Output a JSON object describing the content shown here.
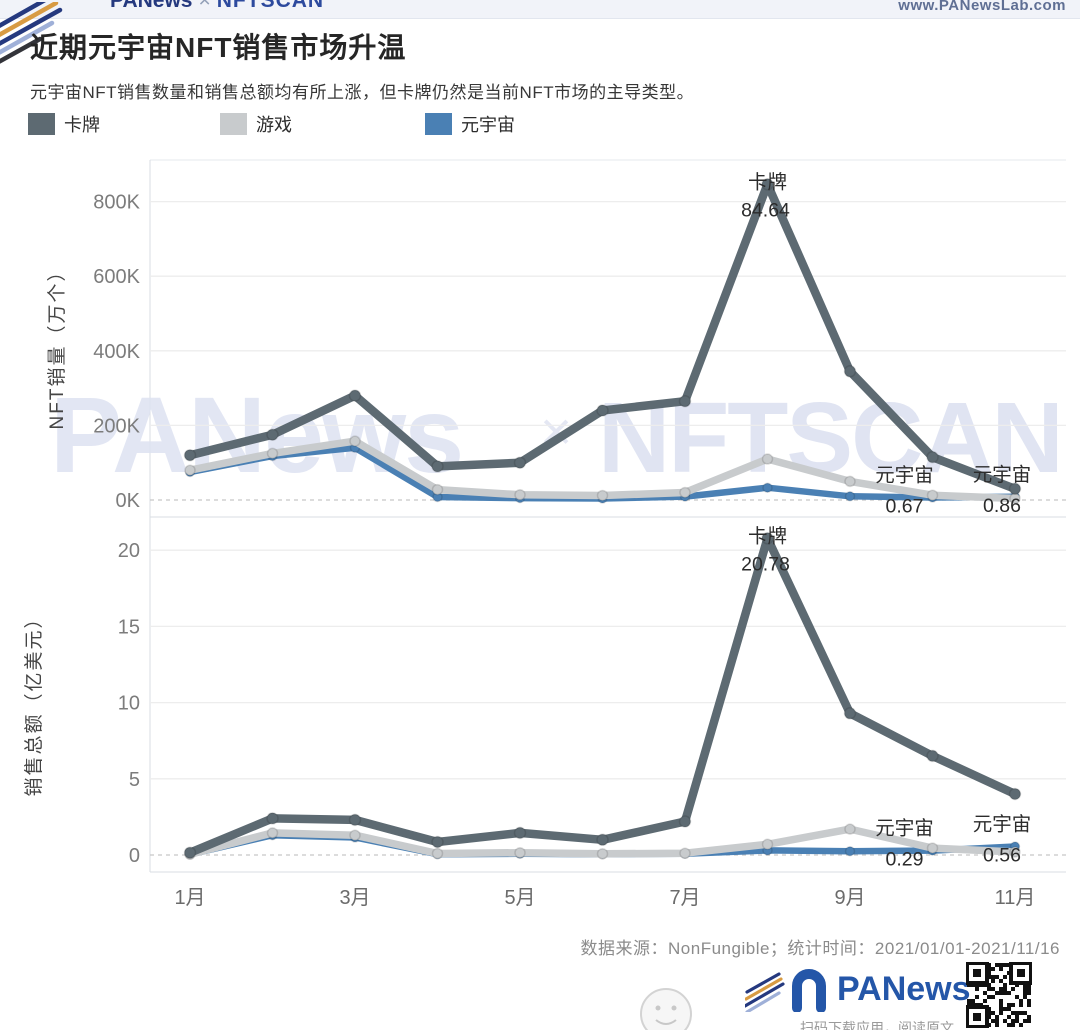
{
  "header": {
    "brand_left": "PANews",
    "brand_sep": "×",
    "brand_right": "NFTSCAN",
    "url": "www.PANewsLab.com"
  },
  "title": "近期元宇宙NFT销售市场升温",
  "subtitle": "元宇宙NFT销售数量和销售总额均有所上涨，但卡牌仍然是当前NFT市场的主导类型。",
  "legend": [
    {
      "label": "卡牌",
      "color": "#5d6a72"
    },
    {
      "label": "游戏",
      "color": "#c8cbcd"
    },
    {
      "label": "元宇宙",
      "color": "#4a80b4"
    }
  ],
  "colors": {
    "card": "#5d6a72",
    "game": "#c8cbcd",
    "metaverse": "#4a80b4"
  },
  "watermark": {
    "left": "PANews",
    "sep": "×",
    "right": "NFTSCAN"
  },
  "chart_data": [
    {
      "type": "line",
      "ylabel": "NFT销量（万个）",
      "x": [
        "1月",
        "2月",
        "3月",
        "4月",
        "5月",
        "6月",
        "7月",
        "8月",
        "9月",
        "10月",
        "11月"
      ],
      "x_tick_labels": [
        "1月",
        "3月",
        "5月",
        "7月",
        "9月",
        "11月"
      ],
      "yticks": [
        "0K",
        "200K",
        "400K",
        "600K",
        "800K"
      ],
      "ylim": [
        0,
        900
      ],
      "grid": true,
      "series": [
        {
          "name": "元宇宙",
          "color": "#4a80b4",
          "values": [
            75,
            118,
            140,
            8,
            5,
            4,
            9,
            33,
            10,
            6.7,
            8.6
          ]
        },
        {
          "name": "游戏",
          "color": "#c8cbcd",
          "values": [
            80,
            125,
            158,
            28,
            14,
            12,
            20,
            110,
            50,
            13,
            4
          ]
        },
        {
          "name": "卡牌",
          "color": "#5d6a72",
          "values": [
            120,
            175,
            280,
            90,
            100,
            240,
            265,
            846.4,
            345,
            115,
            30
          ]
        }
      ],
      "annotations": [
        {
          "kind": "peak",
          "label": "卡牌",
          "value": "84.64",
          "month": "8月",
          "series": "卡牌"
        },
        {
          "kind": "side",
          "label": "元宇宙",
          "value": "0.67",
          "month": "10月",
          "series": "元宇宙"
        },
        {
          "kind": "side",
          "label": "元宇宙",
          "value": "0.86",
          "month": "11月",
          "series": "元宇宙"
        }
      ]
    },
    {
      "type": "line",
      "ylabel": "销售总额（亿美元）",
      "x": [
        "1月",
        "2月",
        "3月",
        "4月",
        "5月",
        "6月",
        "7月",
        "8月",
        "9月",
        "10月",
        "11月"
      ],
      "x_tick_labels": [
        "1月",
        "3月",
        "5月",
        "7月",
        "9月",
        "11月"
      ],
      "yticks": [
        "0",
        "5",
        "10",
        "15",
        "20"
      ],
      "ylim": [
        0,
        22
      ],
      "grid": true,
      "series": [
        {
          "name": "元宇宙",
          "color": "#4a80b4",
          "values": [
            0.03,
            1.3,
            1.15,
            0.05,
            0.08,
            0.05,
            0.08,
            0.3,
            0.25,
            0.29,
            0.56
          ]
        },
        {
          "name": "游戏",
          "color": "#c8cbcd",
          "values": [
            0.05,
            1.45,
            1.3,
            0.1,
            0.15,
            0.08,
            0.12,
            0.7,
            1.7,
            0.45,
            0.2
          ]
        },
        {
          "name": "卡牌",
          "color": "#5d6a72",
          "values": [
            0.15,
            2.4,
            2.3,
            0.85,
            1.45,
            1.0,
            2.2,
            20.78,
            9.3,
            6.5,
            4.0
          ]
        }
      ],
      "annotations": [
        {
          "kind": "peak",
          "label": "卡牌",
          "value": "20.78",
          "month": "8月",
          "series": "卡牌"
        },
        {
          "kind": "side",
          "label": "元宇宙",
          "value": "0.29",
          "month": "10月",
          "series": "元宇宙"
        },
        {
          "kind": "side",
          "label": "元宇宙",
          "value": "0.56",
          "month": "11月",
          "series": "元宇宙"
        }
      ]
    }
  ],
  "footer": {
    "source": "数据来源：NonFungible；统计时间：2021/01/01-2021/11/16"
  },
  "bottom_bar": {
    "brand": "PANews",
    "caption": "扫码下载应用，阅读原文"
  }
}
